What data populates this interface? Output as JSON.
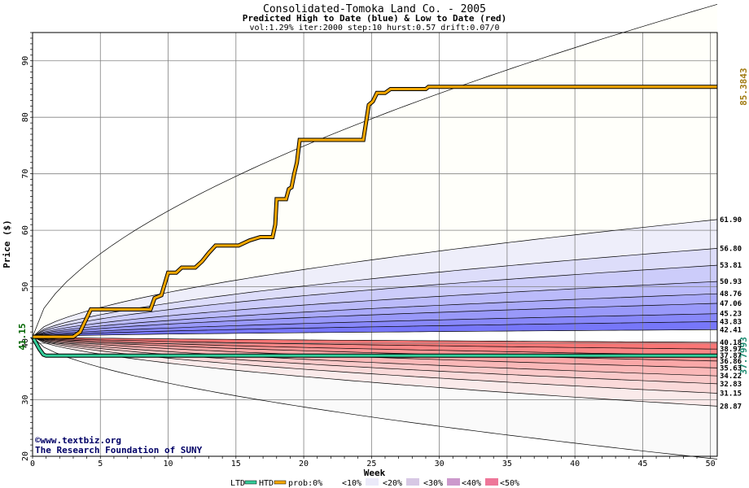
{
  "chart_data": {
    "type": "area",
    "title": "Consolidated-Tomoka Land Co. - 2005",
    "subtitle": "Predicted High to Date (blue) &  Low to Date (red)",
    "params": "vol:1.29% iter:2000 step:10 hurst:0.57 drift:0.07/0",
    "xlabel": "Week",
    "ylabel": "Price ($)",
    "xlim": [
      0,
      50.5
    ],
    "ylim": [
      20,
      95
    ],
    "x_ticks": [
      "0",
      "5",
      "10",
      "15",
      "20",
      "25",
      "30",
      "35",
      "40",
      "45",
      "50"
    ],
    "y_ticks": [
      "20",
      "30",
      "40",
      "50",
      "60",
      "70",
      "80",
      "90"
    ],
    "grid": true,
    "start_price": 41.15,
    "start_label": "41.15",
    "htd_final_label": "85.3843",
    "ltd_final_label": "37.7993",
    "right_labels": [
      "61.90",
      "56.80",
      "53.81",
      "50.93",
      "48.76",
      "47.06",
      "45.23",
      "43.83",
      "42.41",
      "40.18",
      "38.97",
      "37.87",
      "36.86",
      "35.63",
      "34.22",
      "32.83",
      "31.15",
      "28.87"
    ],
    "high_quantiles": [
      {
        "end": 100,
        "p": 0.0
      },
      {
        "end": 61.9,
        "p": 0.1
      },
      {
        "end": 56.8,
        "p": 0.2
      },
      {
        "end": 53.81,
        "p": 0.3
      },
      {
        "end": 50.93,
        "p": 0.4
      },
      {
        "end": 48.76,
        "p": 0.5
      },
      {
        "end": 47.06,
        "p": 0.6
      },
      {
        "end": 45.23,
        "p": 0.7
      },
      {
        "end": 43.83,
        "p": 0.8
      },
      {
        "end": 42.41,
        "p": 0.9
      }
    ],
    "low_quantiles": [
      {
        "end": 40.18,
        "p": 0.9
      },
      {
        "end": 38.97,
        "p": 0.8
      },
      {
        "end": 37.87,
        "p": 0.7
      },
      {
        "end": 36.86,
        "p": 0.6
      },
      {
        "end": 35.63,
        "p": 0.5
      },
      {
        "end": 34.22,
        "p": 0.4
      },
      {
        "end": 32.83,
        "p": 0.3
      },
      {
        "end": 31.15,
        "p": 0.2
      },
      {
        "end": 28.87,
        "p": 0.1
      },
      {
        "end": 19.5,
        "p": 0.0
      }
    ],
    "htd_series": {
      "name": "HTD",
      "points": [
        [
          0,
          41.15
        ],
        [
          3,
          41.15
        ],
        [
          3.5,
          42
        ],
        [
          4,
          44.5
        ],
        [
          4.3,
          46
        ],
        [
          8.7,
          46
        ],
        [
          9,
          48
        ],
        [
          9.5,
          48.5
        ],
        [
          10,
          52.5
        ],
        [
          10.6,
          52.5
        ],
        [
          11,
          53.4
        ],
        [
          12,
          53.4
        ],
        [
          12.5,
          54.5
        ],
        [
          13,
          56
        ],
        [
          13.5,
          57.3
        ],
        [
          15.2,
          57.3
        ],
        [
          16,
          58.2
        ],
        [
          16.8,
          58.8
        ],
        [
          17.7,
          58.8
        ],
        [
          17.9,
          61
        ],
        [
          18,
          65.5
        ],
        [
          18.7,
          65.5
        ],
        [
          18.9,
          67.3
        ],
        [
          19.1,
          67.6
        ],
        [
          19.3,
          70
        ],
        [
          19.5,
          72
        ],
        [
          19.7,
          76
        ],
        [
          24.4,
          76
        ],
        [
          24.8,
          82.2
        ],
        [
          25.1,
          82.8
        ],
        [
          25.4,
          84.3
        ],
        [
          26,
          84.3
        ],
        [
          26.4,
          85
        ],
        [
          29,
          85
        ],
        [
          29.2,
          85.4
        ],
        [
          50.5,
          85.4
        ]
      ]
    },
    "ltd_series": {
      "name": "LTD",
      "points": [
        [
          0,
          41.15
        ],
        [
          0.5,
          39
        ],
        [
          0.8,
          38
        ],
        [
          1,
          37.8
        ],
        [
          50.5,
          37.8
        ]
      ]
    },
    "watermark_line1": "©www.textbiz.org",
    "watermark_line2": "The Research Foundation of SUNY",
    "legend": {
      "ltd": "LTD",
      "htd": "HTD",
      "prob": "prob:0%",
      "bins": [
        "<10%",
        "<20%",
        "<30%",
        "<40%",
        "<50%"
      ]
    },
    "colors": {
      "htd": "#f5a800",
      "ltd": "#33cc99",
      "start_label": "#006600",
      "htd_label": "#a07a10",
      "ltd_label": "#1a8a70",
      "grid": "#808080"
    }
  }
}
